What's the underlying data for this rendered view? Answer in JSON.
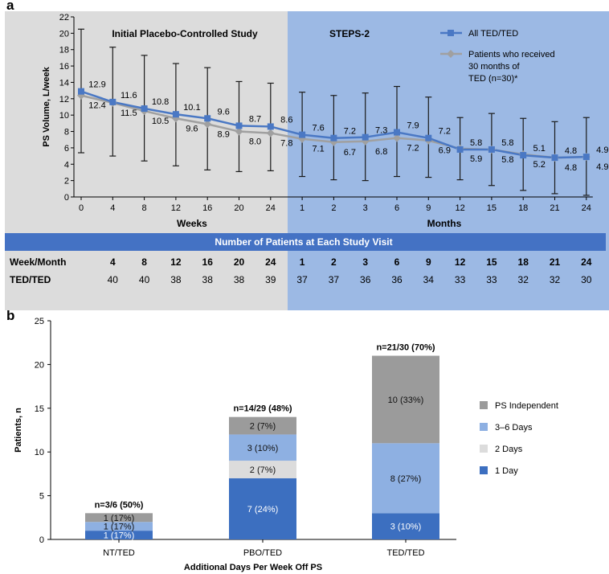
{
  "panel_a": {
    "letter": "a",
    "title_left": "Initial Placebo-Controlled Study",
    "title_right": "STEPS-2",
    "legend": [
      {
        "label_lines": [
          "All TED/TED"
        ],
        "color": "#4a78c4"
      },
      {
        "label_lines": [
          "Patients who received",
          "30 months of",
          "TED (n=30)*"
        ],
        "color": "#a0a0a0"
      }
    ],
    "band_title": "Number of Patients at Each Study Visit",
    "table": {
      "row1_label": "Week/Month",
      "row2_label": "TED/TED",
      "visits": [
        "4",
        "8",
        "12",
        "16",
        "20",
        "24",
        "1",
        "2",
        "3",
        "6",
        "9",
        "12",
        "15",
        "18",
        "21",
        "24"
      ],
      "counts": [
        "40",
        "40",
        "38",
        "38",
        "38",
        "39",
        "37",
        "37",
        "36",
        "36",
        "34",
        "33",
        "33",
        "32",
        "32",
        "30"
      ]
    }
  },
  "panel_b": {
    "letter": "b",
    "legend": [
      {
        "label": "PS Independent",
        "color": "#9b9b9b"
      },
      {
        "label": "3–6 Days",
        "color": "#8eb0e2"
      },
      {
        "label": "2 Days",
        "color": "#dcdcdc"
      },
      {
        "label": "1 Day",
        "color": "#3c6fc0"
      }
    ]
  },
  "chart_data": [
    {
      "type": "line",
      "ylabel": "PS Volume, L/week",
      "ylim": [
        0,
        22
      ],
      "yticks": [
        0,
        2,
        4,
        6,
        8,
        10,
        12,
        14,
        16,
        18,
        20,
        22
      ],
      "x_labels": [
        "0",
        "4",
        "8",
        "12",
        "16",
        "20",
        "24",
        "1",
        "2",
        "3",
        "6",
        "9",
        "12",
        "15",
        "18",
        "21",
        "24"
      ],
      "x_group_labels": [
        {
          "label": "Weeks"
        },
        {
          "label": "Months"
        }
      ],
      "series": [
        {
          "name": "All TED/TED",
          "color": "#4a78c4",
          "values": [
            12.9,
            11.6,
            10.8,
            10.1,
            9.6,
            8.7,
            8.6,
            7.6,
            7.2,
            7.3,
            7.9,
            7.2,
            5.8,
            5.8,
            5.1,
            4.8,
            4.9
          ],
          "error_low": [
            5.4,
            5.0,
            4.4,
            3.8,
            3.3,
            3.1,
            3.2,
            2.5,
            2.1,
            2.0,
            2.5,
            2.4,
            2.1,
            1.4,
            0.8,
            0.4,
            0.2
          ],
          "error_high": [
            20.5,
            18.3,
            17.3,
            16.3,
            15.8,
            14.1,
            13.9,
            12.8,
            12.4,
            12.7,
            13.5,
            12.2,
            9.7,
            10.2,
            9.6,
            9.2,
            9.7
          ]
        },
        {
          "name": "Patients who received 30 months of TED (n=30)*",
          "color": "#a0a0a0",
          "values": [
            12.4,
            11.5,
            10.5,
            9.6,
            8.9,
            8.0,
            7.8,
            7.1,
            6.7,
            6.8,
            7.2,
            6.9,
            5.9,
            5.8,
            5.2,
            4.8,
            4.9
          ]
        }
      ]
    },
    {
      "type": "bar",
      "stacked": true,
      "ylabel": "Patients, n",
      "xlabel": "Additional Days Per Week Off PS",
      "ylim": [
        0,
        25
      ],
      "yticks": [
        0,
        5,
        10,
        15,
        20,
        25
      ],
      "categories": [
        "NT/TED",
        "PBO/TED",
        "TED/TED"
      ],
      "totals": [
        "n=3/6 (50%)",
        "n=14/29 (48%)",
        "n=21/30 (70%)"
      ],
      "series": [
        {
          "name": "1 Day",
          "color": "#3c6fc0",
          "values": [
            1,
            7,
            3
          ],
          "labels": [
            "1 (17%)",
            "7 (24%)",
            "3 (10%)"
          ]
        },
        {
          "name": "2 Days",
          "color": "#dcdcdc",
          "values": [
            0,
            2,
            0
          ],
          "labels": [
            "",
            "2 (7%)",
            ""
          ]
        },
        {
          "name": "3–6 Days",
          "color": "#8eb0e2",
          "values": [
            1,
            3,
            8
          ],
          "labels": [
            "1 (17%)",
            "3 (10%)",
            "8 (27%)"
          ]
        },
        {
          "name": "PS Independent",
          "color": "#9b9b9b",
          "values": [
            1,
            2,
            10
          ],
          "labels": [
            "1 (17%)",
            "2 (7%)",
            "10 (33%)"
          ]
        }
      ]
    }
  ]
}
